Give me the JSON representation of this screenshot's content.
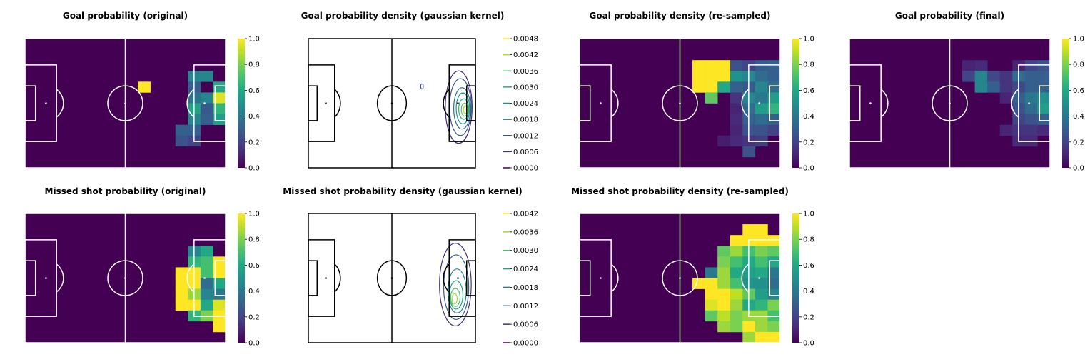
{
  "colors": {
    "pitch_background": "#440154",
    "pitch_lines_heatmap": "#ffffff",
    "pitch_lines_contour": "#000000",
    "colormap": "viridis"
  },
  "chart_data": [
    {
      "type": "heatmap",
      "title": "Goal probability (original)",
      "colorbar": {
        "ticks": [
          "0.0",
          "0.2",
          "0.4",
          "0.6",
          "0.8",
          "1.0"
        ],
        "range": [
          0,
          1
        ]
      },
      "grid_size": [
        16,
        12
      ],
      "cells": [
        [
          9,
          4,
          1.0
        ],
        [
          13,
          3,
          0.45
        ],
        [
          14,
          3,
          0.45
        ],
        [
          13,
          4,
          0.3
        ],
        [
          15,
          4,
          0.6
        ],
        [
          13,
          5,
          0.38
        ],
        [
          14,
          5,
          0.45
        ],
        [
          15,
          5,
          0.95
        ],
        [
          13,
          6,
          0.58
        ],
        [
          14,
          6,
          0.28
        ],
        [
          15,
          6,
          0.65
        ],
        [
          13,
          7,
          0.45
        ],
        [
          14,
          7,
          0.3
        ],
        [
          15,
          7,
          0.55
        ],
        [
          12,
          8,
          0.3
        ],
        [
          13,
          8,
          0.3
        ],
        [
          12,
          9,
          0.25
        ],
        [
          13,
          9,
          0.2
        ]
      ]
    },
    {
      "type": "contour",
      "title": "Goal probability density (gaussian kernel)",
      "colorbar": {
        "ticks": [
          "0.0000",
          "0.0006",
          "0.0012",
          "0.0018",
          "0.0024",
          "0.0030",
          "0.0036",
          "0.0042",
          "0.0048"
        ],
        "range": [
          0,
          0.0048
        ]
      },
      "contours": [
        {
          "level": 0.0006,
          "cx": 0.9,
          "cy": 0.53,
          "rx": 0.08,
          "ry": 0.28
        },
        {
          "level": 0.0012,
          "cx": 0.91,
          "cy": 0.53,
          "rx": 0.065,
          "ry": 0.22
        },
        {
          "level": 0.0018,
          "cx": 0.92,
          "cy": 0.54,
          "rx": 0.05,
          "ry": 0.16
        },
        {
          "level": 0.0024,
          "cx": 0.925,
          "cy": 0.54,
          "rx": 0.04,
          "ry": 0.12
        },
        {
          "level": 0.003,
          "cx": 0.93,
          "cy": 0.545,
          "rx": 0.03,
          "ry": 0.08
        },
        {
          "level": 0.0036,
          "cx": 0.935,
          "cy": 0.55,
          "rx": 0.02,
          "ry": 0.05
        },
        {
          "level": 0.0042,
          "cx": 0.94,
          "cy": 0.55,
          "rx": 0.012,
          "ry": 0.03
        },
        {
          "level": 0.0012,
          "cx": 0.68,
          "cy": 0.37,
          "rx": 0.008,
          "ry": 0.02
        }
      ]
    },
    {
      "type": "heatmap",
      "title": "Goal probability density (re-sampled)",
      "colorbar": {
        "ticks": [
          "0.0",
          "0.2",
          "0.4",
          "0.6",
          "0.8",
          "1.0"
        ],
        "range": [
          0,
          1
        ]
      },
      "grid_size": [
        16,
        12
      ],
      "cells": [
        [
          9,
          2,
          1.0
        ],
        [
          10,
          2,
          1.0
        ],
        [
          11,
          2,
          1.0
        ],
        [
          12,
          2,
          0.25
        ],
        [
          13,
          2,
          0.2
        ],
        [
          14,
          2,
          0.28
        ],
        [
          15,
          2,
          0.3
        ],
        [
          9,
          3,
          1.0
        ],
        [
          10,
          3,
          1.0
        ],
        [
          11,
          3,
          1.0
        ],
        [
          12,
          3,
          0.5
        ],
        [
          13,
          3,
          0.45
        ],
        [
          14,
          3,
          0.35
        ],
        [
          15,
          3,
          0.3
        ],
        [
          9,
          4,
          1.0
        ],
        [
          10,
          4,
          1.0
        ],
        [
          11,
          4,
          0.6
        ],
        [
          12,
          4,
          0.3
        ],
        [
          13,
          4,
          0.28
        ],
        [
          14,
          4,
          0.45
        ],
        [
          15,
          4,
          0.35
        ],
        [
          10,
          5,
          0.75
        ],
        [
          12,
          5,
          0.15
        ],
        [
          13,
          5,
          0.45
        ],
        [
          14,
          5,
          0.4
        ],
        [
          15,
          5,
          0.55
        ],
        [
          12,
          6,
          0.1
        ],
        [
          13,
          6,
          0.35
        ],
        [
          14,
          6,
          0.55
        ],
        [
          15,
          6,
          0.65
        ],
        [
          12,
          7,
          0.12
        ],
        [
          13,
          7,
          0.3
        ],
        [
          14,
          7,
          0.35
        ],
        [
          15,
          7,
          0.3
        ],
        [
          12,
          8,
          0.1
        ],
        [
          13,
          8,
          0.25
        ],
        [
          14,
          8,
          0.25
        ],
        [
          15,
          8,
          0.2
        ],
        [
          11,
          9,
          0.08
        ],
        [
          12,
          9,
          0.12
        ],
        [
          13,
          9,
          0.15
        ],
        [
          14,
          9,
          0.18
        ],
        [
          13,
          10,
          0.25
        ]
      ]
    },
    {
      "type": "heatmap",
      "title": "Goal probability (final)",
      "colorbar": {
        "ticks": [
          "0.0",
          "0.2",
          "0.4",
          "0.6",
          "0.8",
          "1.0"
        ],
        "range": [
          0,
          1
        ]
      },
      "grid_size": [
        16,
        12
      ],
      "cells": [
        [
          9,
          2,
          0.1
        ],
        [
          10,
          2,
          0.12
        ],
        [
          13,
          2,
          0.1
        ],
        [
          14,
          2,
          0.2
        ],
        [
          15,
          2,
          0.25
        ],
        [
          9,
          3,
          0.2
        ],
        [
          10,
          3,
          0.45
        ],
        [
          11,
          3,
          0.22
        ],
        [
          12,
          3,
          0.15
        ],
        [
          13,
          3,
          0.35
        ],
        [
          14,
          3,
          0.3
        ],
        [
          15,
          3,
          0.3
        ],
        [
          10,
          4,
          0.45
        ],
        [
          11,
          4,
          0.3
        ],
        [
          12,
          4,
          0.15
        ],
        [
          13,
          4,
          0.22
        ],
        [
          14,
          4,
          0.3
        ],
        [
          15,
          4,
          0.3
        ],
        [
          12,
          5,
          0.1
        ],
        [
          13,
          5,
          0.3
        ],
        [
          14,
          5,
          0.4
        ],
        [
          15,
          5,
          0.5
        ],
        [
          13,
          6,
          0.25
        ],
        [
          14,
          6,
          0.35
        ],
        [
          15,
          6,
          0.55
        ],
        [
          13,
          7,
          0.2
        ],
        [
          14,
          7,
          0.25
        ],
        [
          15,
          7,
          0.3
        ],
        [
          12,
          8,
          0.1
        ],
        [
          13,
          8,
          0.15
        ],
        [
          14,
          8,
          0.15
        ],
        [
          15,
          8,
          0.12
        ],
        [
          13,
          9,
          0.12
        ],
        [
          14,
          9,
          0.12
        ]
      ]
    },
    {
      "type": "heatmap",
      "title": "Missed shot probability (original)",
      "colorbar": {
        "ticks": [
          "0.0",
          "0.2",
          "0.4",
          "0.6",
          "0.8",
          "1.0"
        ],
        "range": [
          0,
          1
        ]
      },
      "grid_size": [
        16,
        12
      ],
      "cells": [
        [
          13,
          3,
          0.45
        ],
        [
          14,
          3,
          0.6
        ],
        [
          13,
          4,
          0.65
        ],
        [
          14,
          4,
          0.7
        ],
        [
          15,
          4,
          1.0
        ],
        [
          12,
          5,
          1.0
        ],
        [
          13,
          5,
          1.0
        ],
        [
          14,
          5,
          0.7
        ],
        [
          15,
          5,
          1.0
        ],
        [
          12,
          6,
          1.0
        ],
        [
          13,
          6,
          1.0
        ],
        [
          14,
          6,
          0.35
        ],
        [
          15,
          6,
          0.6
        ],
        [
          12,
          7,
          1.0
        ],
        [
          13,
          7,
          0.85
        ],
        [
          14,
          7,
          0.45
        ],
        [
          15,
          7,
          0.4
        ],
        [
          12,
          8,
          1.0
        ],
        [
          13,
          8,
          1.0
        ],
        [
          14,
          8,
          0.6
        ],
        [
          15,
          8,
          0.95
        ],
        [
          13,
          9,
          0.65
        ],
        [
          14,
          9,
          0.8
        ],
        [
          15,
          9,
          1.0
        ],
        [
          15,
          10,
          1.0
        ]
      ]
    },
    {
      "type": "contour",
      "title": "Missed shot probability density (gaussian kernel)",
      "colorbar": {
        "ticks": [
          "0.0000",
          "0.0006",
          "0.0012",
          "0.0018",
          "0.0024",
          "0.0030",
          "0.0036",
          "0.0042"
        ],
        "range": [
          0,
          0.0042
        ]
      },
      "contours": [
        {
          "level": 0.0006,
          "cx": 0.88,
          "cy": 0.55,
          "rx": 0.095,
          "ry": 0.32
        },
        {
          "level": 0.0012,
          "cx": 0.885,
          "cy": 0.57,
          "rx": 0.075,
          "ry": 0.25
        },
        {
          "level": 0.0018,
          "cx": 0.89,
          "cy": 0.6,
          "rx": 0.055,
          "ry": 0.17
        },
        {
          "level": 0.0024,
          "cx": 0.885,
          "cy": 0.63,
          "rx": 0.04,
          "ry": 0.11
        },
        {
          "level": 0.003,
          "cx": 0.88,
          "cy": 0.65,
          "rx": 0.028,
          "ry": 0.07
        },
        {
          "level": 0.0036,
          "cx": 0.875,
          "cy": 0.66,
          "rx": 0.016,
          "ry": 0.04
        }
      ]
    },
    {
      "type": "heatmap",
      "title": "Missed shot probability density (re-sampled)",
      "colorbar": {
        "ticks": [
          "0.0",
          "0.2",
          "0.4",
          "0.6",
          "0.8",
          "1.0"
        ],
        "range": [
          0,
          1
        ]
      },
      "grid_size": [
        16,
        12
      ],
      "cells": [
        [
          13,
          1,
          1.0
        ],
        [
          14,
          1,
          1.0
        ],
        [
          12,
          2,
          1.0
        ],
        [
          13,
          2,
          1.0
        ],
        [
          14,
          2,
          1.0
        ],
        [
          15,
          2,
          1.0
        ],
        [
          11,
          3,
          0.75
        ],
        [
          12,
          3,
          0.85
        ],
        [
          13,
          3,
          0.7
        ],
        [
          14,
          3,
          0.8
        ],
        [
          15,
          3,
          0.75
        ],
        [
          11,
          4,
          0.8
        ],
        [
          12,
          4,
          0.7
        ],
        [
          13,
          4,
          0.6
        ],
        [
          14,
          4,
          0.7
        ],
        [
          15,
          4,
          0.6
        ],
        [
          10,
          5,
          0.4
        ],
        [
          11,
          5,
          0.85
        ],
        [
          12,
          5,
          0.6
        ],
        [
          13,
          5,
          0.55
        ],
        [
          14,
          5,
          0.6
        ],
        [
          15,
          5,
          0.4
        ],
        [
          9,
          6,
          1.0
        ],
        [
          10,
          6,
          1.0
        ],
        [
          11,
          6,
          0.85
        ],
        [
          12,
          6,
          0.7
        ],
        [
          13,
          6,
          0.5
        ],
        [
          14,
          6,
          0.5
        ],
        [
          15,
          6,
          0.35
        ],
        [
          10,
          7,
          1.0
        ],
        [
          11,
          7,
          1.0
        ],
        [
          12,
          7,
          0.9
        ],
        [
          13,
          7,
          0.75
        ],
        [
          14,
          7,
          0.55
        ],
        [
          15,
          7,
          0.45
        ],
        [
          10,
          8,
          0.95
        ],
        [
          11,
          8,
          1.0
        ],
        [
          12,
          8,
          0.85
        ],
        [
          13,
          8,
          0.6
        ],
        [
          14,
          8,
          0.65
        ],
        [
          15,
          8,
          0.8
        ],
        [
          10,
          9,
          0.75
        ],
        [
          11,
          9,
          0.9
        ],
        [
          12,
          9,
          0.8
        ],
        [
          13,
          9,
          0.85
        ],
        [
          14,
          9,
          0.85
        ],
        [
          15,
          9,
          0.7
        ],
        [
          11,
          10,
          0.85
        ],
        [
          12,
          10,
          0.8
        ],
        [
          13,
          10,
          1.0
        ],
        [
          14,
          10,
          0.85
        ],
        [
          15,
          10,
          0.8
        ],
        [
          13,
          11,
          0.85
        ],
        [
          14,
          11,
          1.0
        ],
        [
          15,
          11,
          1.0
        ]
      ]
    }
  ]
}
